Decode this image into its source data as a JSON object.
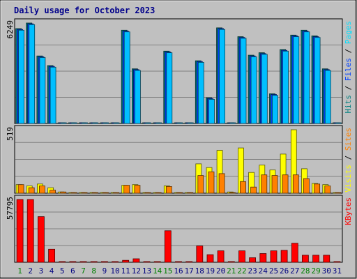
{
  "chart_data": {
    "type": "bar",
    "title": "Daily usage for October 2023",
    "categories": [
      "1",
      "2",
      "3",
      "4",
      "5",
      "6",
      "7",
      "8",
      "9",
      "10",
      "11",
      "12",
      "13",
      "14",
      "15",
      "16",
      "17",
      "18",
      "19",
      "20",
      "21",
      "22",
      "23",
      "24",
      "25",
      "26",
      "27",
      "28",
      "29",
      "30",
      "31"
    ],
    "weekend_days": [
      1,
      7,
      8,
      14,
      15,
      21,
      22,
      28,
      29
    ],
    "panels": [
      {
        "name": "hits",
        "ymax_label": "6249",
        "ylim": [
          0,
          6249
        ],
        "side_legend": [
          {
            "text": "Hits",
            "color": "#008080"
          },
          {
            "text": " / ",
            "color": "#000000"
          },
          {
            "text": "Files",
            "color": "#0040ff"
          },
          {
            "text": " / ",
            "color": "#000000"
          },
          {
            "text": "Pages",
            "color": "#00e0ff"
          }
        ],
        "series": [
          {
            "key": "hits",
            "color": "#008080",
            "values": [
              5900,
              6249,
              4200,
              3600,
              30,
              30,
              30,
              30,
              30,
              30,
              5800,
              3400,
              30,
              30,
              4500,
              30,
              30,
              3900,
              1600,
              5950,
              30,
              5400,
              4250,
              4400,
              1850,
              4600,
              5500,
              5800,
              5450,
              3400,
              30
            ]
          },
          {
            "key": "files",
            "color": "#0040ff",
            "values": [
              5850,
              6200,
              4150,
              3550,
              30,
              30,
              30,
              30,
              30,
              30,
              5750,
              3350,
              30,
              30,
              4450,
              30,
              30,
              3850,
              1550,
              5900,
              30,
              5350,
              4200,
              4350,
              1800,
              4550,
              5450,
              5750,
              5400,
              3350,
              30
            ]
          },
          {
            "key": "pages",
            "color": "#00bfff",
            "values": [
              5800,
              6150,
              4100,
              3500,
              30,
              30,
              30,
              30,
              30,
              30,
              5700,
              3300,
              30,
              30,
              4400,
              30,
              30,
              3800,
              1500,
              5850,
              30,
              5300,
              4150,
              4300,
              1750,
              4500,
              5400,
              5700,
              5350,
              3300,
              30
            ]
          }
        ]
      },
      {
        "name": "visits",
        "ymax_label": "519",
        "ylim": [
          0,
          519
        ],
        "side_legend": [
          {
            "text": "Visits",
            "color": "#ffff00"
          },
          {
            "text": " / ",
            "color": "#000000"
          },
          {
            "text": "Sites",
            "color": "#ff8000"
          }
        ],
        "series": [
          {
            "key": "visits",
            "color": "#ffff00",
            "values": [
              70,
              60,
              75,
              45,
              10,
              5,
              5,
              5,
              5,
              5,
              65,
              70,
              5,
              5,
              60,
              5,
              5,
              240,
              210,
              350,
              10,
              370,
              170,
              230,
              190,
              320,
              519,
              200,
              80,
              70,
              5
            ]
          },
          {
            "key": "sites",
            "color": "#ff8000",
            "values": [
              70,
              45,
              60,
              25,
              10,
              5,
              5,
              5,
              5,
              5,
              65,
              65,
              5,
              5,
              55,
              5,
              5,
              145,
              175,
              160,
              5,
              95,
              50,
              150,
              145,
              150,
              150,
              120,
              75,
              60,
              5
            ]
          }
        ]
      },
      {
        "name": "kbytes",
        "ymax_label": "57795",
        "ylim": [
          0,
          57795
        ],
        "side_legend": [
          {
            "text": "KBytes",
            "color": "#ff0000"
          }
        ],
        "series": [
          {
            "key": "kbytes",
            "color": "#ff0000",
            "values": [
              57795,
              57795,
              42000,
              12000,
              200,
              200,
              200,
              200,
              200,
              200,
              1800,
              3200,
              200,
              200,
              29000,
              200,
              200,
              15000,
              7000,
              10500,
              200,
              10500,
              4200,
              8000,
              10500,
              11000,
              17500,
              6500,
              6500,
              6500,
              200
            ]
          }
        ]
      }
    ]
  }
}
